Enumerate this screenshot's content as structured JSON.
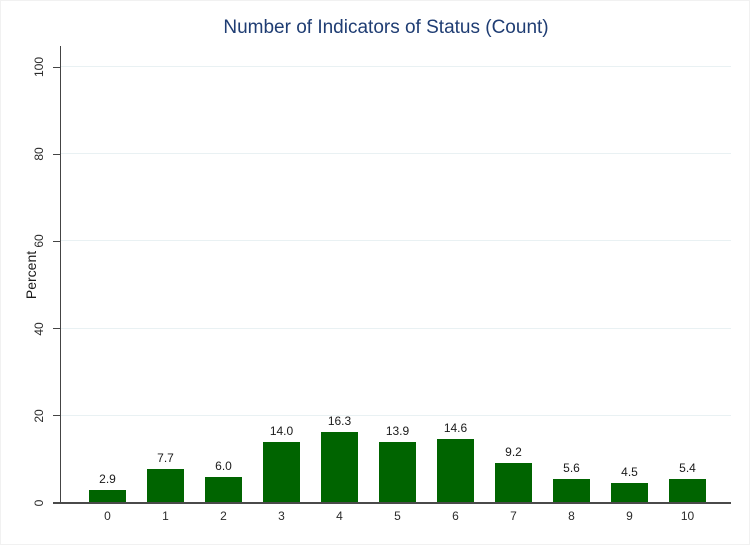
{
  "figure": {
    "background": "#ffffff",
    "border_color": "#f1f1f1"
  },
  "chart_data": {
    "type": "bar",
    "title": "Number of Indicators of Status (Count)",
    "xlabel": "",
    "ylabel": "Percent",
    "categories": [
      "0",
      "1",
      "2",
      "3",
      "4",
      "5",
      "6",
      "7",
      "8",
      "9",
      "10"
    ],
    "values": [
      2.9,
      7.7,
      6.0,
      14.0,
      16.3,
      13.9,
      14.6,
      9.2,
      5.6,
      4.5,
      5.4
    ],
    "bar_labels": [
      "2.9",
      "7.7",
      "6.0",
      "14.0",
      "16.3",
      "13.9",
      "14.6",
      "9.2",
      "5.6",
      "4.5",
      "5.4"
    ],
    "yticks": [
      0,
      20,
      40,
      60,
      80,
      100
    ],
    "ytick_labels": [
      "0",
      "20",
      "40",
      "60",
      "80",
      "100"
    ],
    "ylim": [
      0,
      100
    ],
    "grid": true,
    "legend_position": "none",
    "colors": {
      "bar": "#006400",
      "grid": "#e9f1f3",
      "title": "#1f3d73",
      "axis": "#4a4a4a",
      "tick": "#444444"
    }
  }
}
